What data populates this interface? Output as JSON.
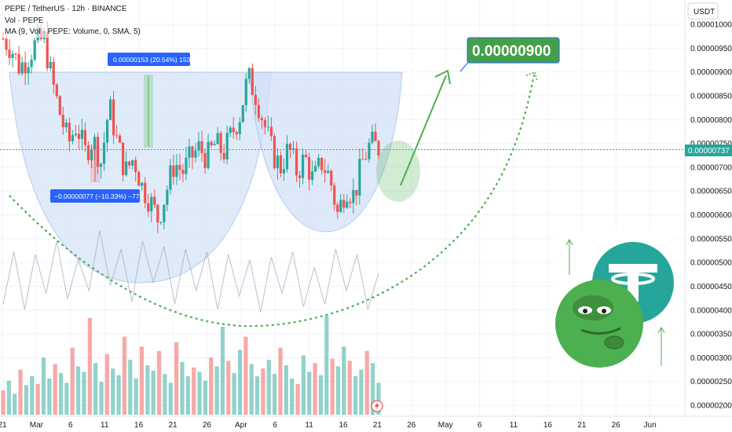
{
  "header": {
    "title": "PEPE / TetherUS · 12h · BINANCE",
    "line2": "Vol · PEPE",
    "line3": "MA (9, Vol · PEPE: Volume, 0, SMA, 5)"
  },
  "currency": "USDT",
  "target_label": "0.00000900",
  "measure_up": "0.00000153 (20.54%) 153",
  "measure_down": "−0.00000077 (−10.33%) −77",
  "current_price_label": "0.00000737",
  "colors": {
    "up": "#26a69a",
    "down": "#ef5350",
    "arrow": "#4caf50",
    "callout_bg": "#43a047",
    "bowl_fill": "#cfe0f6",
    "price_line": "#26a69a",
    "measure_bg": "#2962ff"
  },
  "icons": [
    "tether-logo-icon",
    "pepe-frog-icon",
    "lightning-icon"
  ],
  "chart_data": {
    "type": "candlestick",
    "ylim": [
      1.95e-06,
      1.035e-05
    ],
    "y_ticks": [
      "0.00001000",
      "0.00000950",
      "0.00000900",
      "0.00000850",
      "0.00000800",
      "0.00000750",
      "0.00000700",
      "0.00000650",
      "0.00000600",
      "0.00000550",
      "0.00000500",
      "0.00000450",
      "0.00000400",
      "0.00000350",
      "0.00000300",
      "0.00000250",
      "0.00000200"
    ],
    "x_ticks": [
      "21",
      "Mar",
      "6",
      "11",
      "16",
      "21",
      "26",
      "Apr",
      "6",
      "11",
      "16",
      "21",
      "26",
      "May",
      "6",
      "11",
      "16",
      "21",
      "26",
      "Jun"
    ],
    "close_path": [
      9.7e-06,
      9.5e-06,
      9.1e-06,
      9.3e-06,
      9.6e-06,
      9.7e-06,
      8.8e-06,
      8.1e-06,
      7.5e-06,
      7.9e-06,
      7.3e-06,
      7.6e-06,
      7.1e-06,
      8.3e-06,
      7.5e-06,
      6.9e-06,
      7.2e-06,
      6.6e-06,
      6.3e-06,
      5.9e-06,
      6.5e-06,
      7.1e-06,
      6.9e-06,
      7.2e-06,
      7.4e-06,
      7.2e-06,
      7.5e-06,
      7.3e-06,
      7.7e-06,
      8.1e-06,
      8.9e-06,
      8.5e-06,
      7.9e-06,
      7.3e-06,
      7e-06,
      7.4e-06,
      6.9e-06,
      7.2e-06,
      6.7e-06,
      7.1e-06,
      6.8e-06,
      6e-06,
      6.6e-06,
      6.4e-06,
      7.1e-06,
      7.5e-06,
      7.4e-06
    ],
    "current_price": 7.37e-06,
    "target_price": 9e-06,
    "volume_max": 9e-07,
    "volume": [
      0.22,
      0.31,
      0.19,
      0.41,
      0.27,
      0.35,
      0.28,
      0.52,
      0.33,
      0.46,
      0.38,
      0.29,
      0.61,
      0.44,
      0.39,
      0.88,
      0.47,
      0.3,
      0.55,
      0.42,
      0.36,
      0.71,
      0.5,
      0.33,
      0.62,
      0.45,
      0.4,
      0.58,
      0.37,
      0.29,
      0.66,
      0.48,
      0.35,
      0.43,
      0.39,
      0.31,
      0.52,
      0.44,
      0.8,
      0.49,
      0.38,
      0.59,
      0.71,
      0.46,
      0.35,
      0.42,
      0.5,
      0.37,
      0.61,
      0.45,
      0.33,
      0.28,
      0.54,
      0.39,
      0.47,
      0.36,
      0.9,
      0.51,
      0.44,
      0.62,
      0.49,
      0.35,
      0.41,
      0.58,
      0.47,
      0.29
    ],
    "volume_ma": [
      0.42,
      0.44,
      0.4,
      0.43,
      0.46,
      0.48,
      0.44,
      0.41,
      0.47,
      0.52,
      0.49,
      0.45,
      0.43,
      0.48,
      0.5,
      0.46,
      0.42,
      0.45,
      0.47,
      0.44,
      0.4,
      0.43,
      0.45,
      0.41,
      0.39,
      0.42,
      0.46,
      0.44,
      0.41,
      0.38,
      0.42,
      0.45,
      0.47,
      0.43,
      0.4,
      0.36
    ]
  }
}
